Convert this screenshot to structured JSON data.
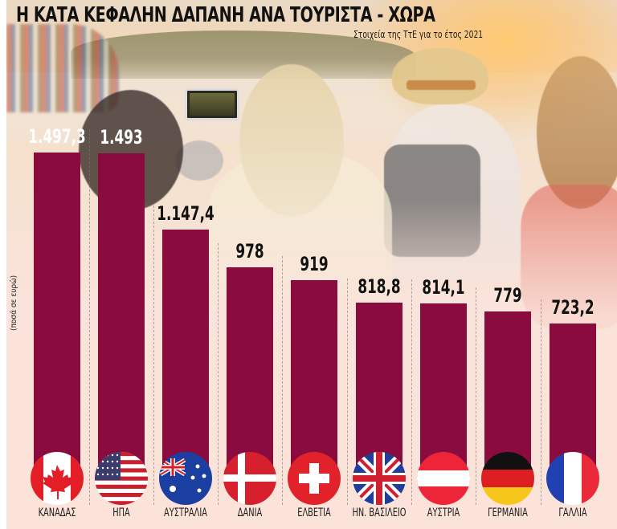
{
  "header": {
    "title": "Η ΚΑΤΑ ΚΕΦΑΛΗΝ ΔΑΠΑΝΗ ΑΝΑ ΤΟΥΡΙΣΤΑ - ΧΩΡΑ",
    "subtitle": "Στοιχεία της ΤτΕ για το έτος 2021"
  },
  "axis": {
    "ylabel": "(ποσά σε ευρώ)"
  },
  "colors": {
    "bar": "#8a0c3e",
    "background": "#fbe3da",
    "text": "#111111"
  },
  "bars": [
    {
      "country": "ΚΑΝΑΔΑΣ",
      "value_label": "1.497,3",
      "flag": "canada-flag-icon"
    },
    {
      "country": "ΗΠΑ",
      "value_label": "1.493",
      "flag": "usa-flag-icon"
    },
    {
      "country": "ΑΥΣΤΡΑΛΙΑ",
      "value_label": "1.147,4",
      "flag": "australia-flag-icon"
    },
    {
      "country": "ΔΑΝΙΑ",
      "value_label": "978",
      "flag": "denmark-flag-icon"
    },
    {
      "country": "ΕΛΒΕΤΙΑ",
      "value_label": "919",
      "flag": "switzerland-flag-icon"
    },
    {
      "country": "ΗΝ. ΒΑΣΙΛΕΙΟ",
      "value_label": "818,8",
      "flag": "uk-flag-icon"
    },
    {
      "country": "ΑΥΣΤΡΙΑ",
      "value_label": "814,1",
      "flag": "austria-flag-icon"
    },
    {
      "country": "ΓΕΡΜΑΝΙΑ",
      "value_label": "779",
      "flag": "germany-flag-icon"
    },
    {
      "country": "ΓΑΛΛΙΑ",
      "value_label": "723,2",
      "flag": "france-flag-icon"
    }
  ],
  "chart_data": {
    "type": "bar",
    "title": "Η ΚΑΤΑ ΚΕΦΑΛΗΝ ΔΑΠΑΝΗ ΑΝΑ ΤΟΥΡΙΣΤΑ - ΧΩΡΑ",
    "subtitle": "Στοιχεία της ΤτΕ για το έτος 2021",
    "xlabel": "",
    "ylabel": "(ποσά σε ευρώ)",
    "categories": [
      "ΚΑΝΑΔΑΣ",
      "ΗΠΑ",
      "ΑΥΣΤΡΑΛΙΑ",
      "ΔΑΝΙΑ",
      "ΕΛΒΕΤΙΑ",
      "ΗΝ. ΒΑΣΙΛΕΙΟ",
      "ΑΥΣΤΡΙΑ",
      "ΓΕΡΜΑΝΙΑ",
      "ΓΑΛΛΙΑ"
    ],
    "values": [
      1497.3,
      1493,
      1147.4,
      978,
      919,
      818.8,
      814.1,
      779,
      723.2
    ],
    "value_labels": [
      "1.497,3",
      "1.493",
      "1.147,4",
      "978",
      "919",
      "818,8",
      "814,1",
      "779",
      "723,2"
    ],
    "grid": false,
    "legend": null,
    "unit": "EUR"
  }
}
